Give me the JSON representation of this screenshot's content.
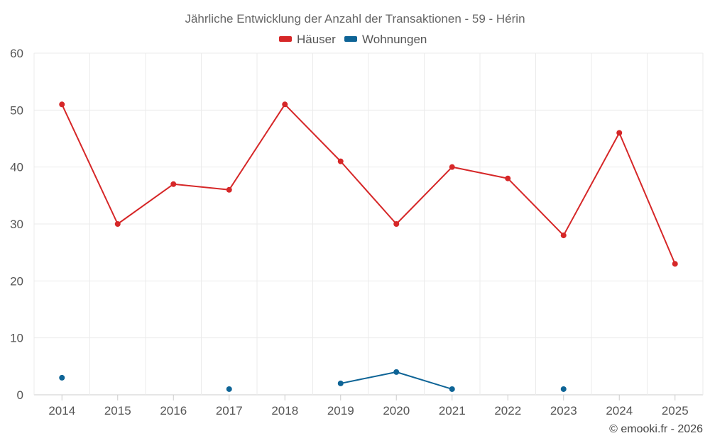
{
  "chart_data": {
    "type": "line",
    "title": "Jährliche Entwicklung der Anzahl der Transaktionen - 59 - Hérin",
    "xlabel": "",
    "ylabel": "",
    "categories": [
      "2014",
      "2015",
      "2016",
      "2017",
      "2018",
      "2019",
      "2020",
      "2021",
      "2022",
      "2023",
      "2024",
      "2025"
    ],
    "ylim": [
      0,
      60
    ],
    "yticks": [
      0,
      10,
      20,
      30,
      40,
      50,
      60
    ],
    "grid": true,
    "legend_position": "top-center",
    "series": [
      {
        "name": "Häuser",
        "color": "#d62728",
        "values": [
          51,
          30,
          37,
          36,
          51,
          41,
          30,
          40,
          38,
          28,
          46,
          23
        ]
      },
      {
        "name": "Wohnungen",
        "color": "#0e6496",
        "values": [
          3,
          null,
          null,
          1,
          null,
          2,
          4,
          1,
          null,
          1,
          null,
          null
        ]
      }
    ]
  },
  "credit": "© emooki.fr - 2026"
}
